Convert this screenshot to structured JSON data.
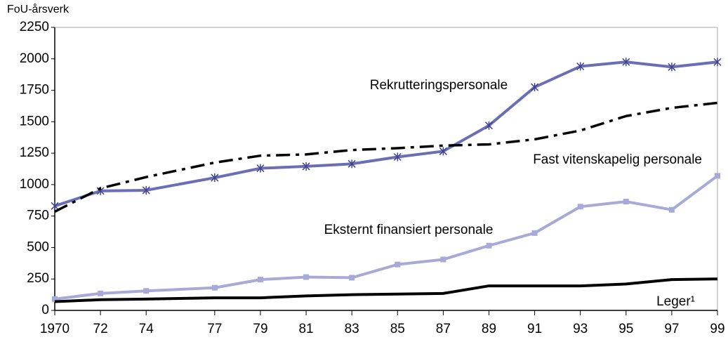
{
  "chart_data": {
    "type": "line",
    "y_label": "FoU-årsverk",
    "x": [
      1970,
      1972,
      1974,
      1977,
      1979,
      1981,
      1983,
      1985,
      1987,
      1989,
      1991,
      1993,
      1995,
      1997,
      1999
    ],
    "xlim": [
      1970,
      1999
    ],
    "xticks": [
      {
        "value": 1970,
        "label": "1970"
      },
      {
        "value": 1972,
        "label": "72"
      },
      {
        "value": 1974,
        "label": "74"
      },
      {
        "value": 1977,
        "label": "77"
      },
      {
        "value": 1979,
        "label": "79"
      },
      {
        "value": 1981,
        "label": "81"
      },
      {
        "value": 1983,
        "label": "83"
      },
      {
        "value": 1985,
        "label": "85"
      },
      {
        "value": 1987,
        "label": "87"
      },
      {
        "value": 1989,
        "label": "89"
      },
      {
        "value": 1991,
        "label": "91"
      },
      {
        "value": 1993,
        "label": "93"
      },
      {
        "value": 1995,
        "label": "95"
      },
      {
        "value": 1997,
        "label": "97"
      },
      {
        "value": 1999,
        "label": "99"
      }
    ],
    "ylim": [
      0,
      2250
    ],
    "yticks": [
      0,
      250,
      500,
      750,
      1000,
      1250,
      1500,
      1750,
      2000,
      2250
    ],
    "grid": false,
    "series": [
      {
        "name": "Rekrutteringspersonale",
        "color": "#6a6eb4",
        "marker": "star",
        "dash": false,
        "values": [
          830,
          950,
          955,
          1055,
          1130,
          1145,
          1165,
          1220,
          1265,
          1470,
          1775,
          1940,
          1975,
          1935,
          1975
        ]
      },
      {
        "name": "Fast vitenskapelig personale",
        "color": "#000000",
        "marker": null,
        "dash": true,
        "values": [
          785,
          970,
          1060,
          1175,
          1230,
          1240,
          1275,
          1290,
          1310,
          1320,
          1360,
          1430,
          1545,
          1610,
          1650
        ]
      },
      {
        "name": "Eksternt finansiert personale",
        "color": "#a7a9d6",
        "marker": "square",
        "dash": false,
        "values": [
          90,
          135,
          155,
          180,
          245,
          265,
          260,
          365,
          405,
          515,
          615,
          825,
          865,
          800,
          1070
        ]
      },
      {
        "name": "Leger¹",
        "color": "#000000",
        "marker": null,
        "dash": false,
        "values": [
          70,
          85,
          90,
          100,
          100,
          115,
          125,
          130,
          135,
          195,
          195,
          195,
          210,
          245,
          250
        ]
      }
    ]
  }
}
